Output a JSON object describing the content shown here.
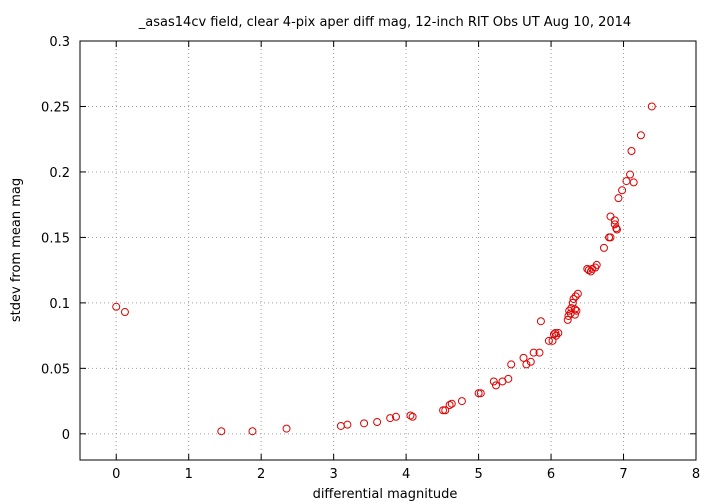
{
  "chart_data": {
    "type": "scatter",
    "title": "_asas14cv field, clear 4-pix aper diff mag,  12-inch RIT Obs UT Aug 10, 2014",
    "xlabel": "differential magnitude",
    "ylabel": "stdev from mean mag",
    "xlim": [
      -0.5,
      8
    ],
    "ylim": [
      -0.02,
      0.3
    ],
    "xticks": [
      "0",
      "1",
      "2",
      "3",
      "4",
      "5",
      "6",
      "7",
      "8"
    ],
    "yticks": [
      "0",
      "0.05",
      "0.1",
      "0.15",
      "0.2",
      "0.25",
      "0.3"
    ],
    "grid": true,
    "marker_color": "#e00000",
    "series": [
      {
        "points": [
          [
            0.0,
            0.097
          ],
          [
            0.12,
            0.093
          ],
          [
            1.45,
            0.002
          ],
          [
            1.88,
            0.002
          ],
          [
            2.35,
            0.004
          ],
          [
            3.1,
            0.006
          ],
          [
            3.19,
            0.007
          ],
          [
            3.42,
            0.008
          ],
          [
            3.6,
            0.009
          ],
          [
            3.78,
            0.012
          ],
          [
            3.86,
            0.013
          ],
          [
            4.06,
            0.014
          ],
          [
            4.09,
            0.013
          ],
          [
            4.51,
            0.018
          ],
          [
            4.54,
            0.018
          ],
          [
            4.6,
            0.022
          ],
          [
            4.63,
            0.023
          ],
          [
            4.77,
            0.025
          ],
          [
            5.0,
            0.031
          ],
          [
            5.03,
            0.031
          ],
          [
            5.21,
            0.04
          ],
          [
            5.24,
            0.037
          ],
          [
            5.33,
            0.04
          ],
          [
            5.41,
            0.042
          ],
          [
            5.45,
            0.053
          ],
          [
            5.62,
            0.058
          ],
          [
            5.66,
            0.053
          ],
          [
            5.72,
            0.055
          ],
          [
            5.76,
            0.062
          ],
          [
            5.84,
            0.062
          ],
          [
            5.86,
            0.086
          ],
          [
            5.97,
            0.071
          ],
          [
            6.02,
            0.071
          ],
          [
            6.04,
            0.076
          ],
          [
            6.06,
            0.077
          ],
          [
            6.07,
            0.075
          ],
          [
            6.1,
            0.077
          ],
          [
            6.23,
            0.087
          ],
          [
            6.24,
            0.09
          ],
          [
            6.25,
            0.094
          ],
          [
            6.27,
            0.092
          ],
          [
            6.28,
            0.096
          ],
          [
            6.3,
            0.1
          ],
          [
            6.31,
            0.103
          ],
          [
            6.33,
            0.095
          ],
          [
            6.33,
            0.091
          ],
          [
            6.34,
            0.105
          ],
          [
            6.35,
            0.094
          ],
          [
            6.37,
            0.107
          ],
          [
            6.5,
            0.126
          ],
          [
            6.52,
            0.125
          ],
          [
            6.55,
            0.124
          ],
          [
            6.57,
            0.126
          ],
          [
            6.61,
            0.127
          ],
          [
            6.63,
            0.129
          ],
          [
            6.73,
            0.142
          ],
          [
            6.8,
            0.15
          ],
          [
            6.82,
            0.15
          ],
          [
            6.82,
            0.166
          ],
          [
            6.88,
            0.16
          ],
          [
            6.88,
            0.163
          ],
          [
            6.9,
            0.157
          ],
          [
            6.91,
            0.156
          ],
          [
            6.93,
            0.18
          ],
          [
            6.98,
            0.186
          ],
          [
            7.04,
            0.193
          ],
          [
            7.09,
            0.198
          ],
          [
            7.11,
            0.216
          ],
          [
            7.14,
            0.192
          ],
          [
            7.24,
            0.228
          ],
          [
            7.39,
            0.25
          ]
        ]
      }
    ]
  }
}
